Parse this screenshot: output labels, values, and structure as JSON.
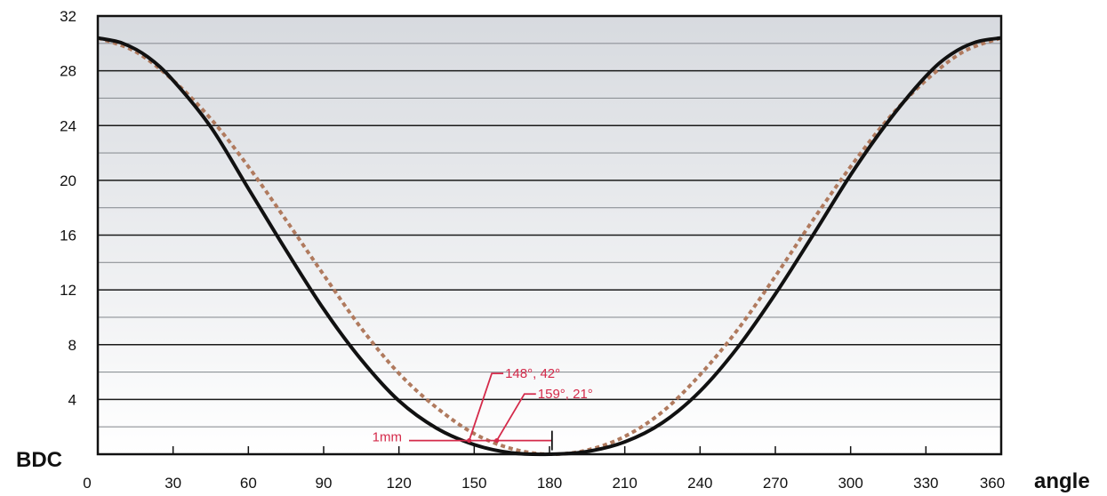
{
  "chart_data": {
    "type": "line",
    "xlabel": "angle",
    "ylabel": "BDC",
    "xlim": [
      0,
      360
    ],
    "ylim": [
      0,
      32
    ],
    "x_ticks": [
      "0",
      "30",
      "60",
      "90",
      "120",
      "150",
      "180",
      "210",
      "240",
      "270",
      "300",
      "330",
      "360"
    ],
    "y_ticks": [
      "4",
      "8",
      "12",
      "16",
      "20",
      "24",
      "28",
      "32"
    ],
    "grid": "horizontal, every 2 units",
    "colors": {
      "solid_line": "#111111",
      "dotted_line": "#b07a5e",
      "annotation": "#d42a4a",
      "background_top": "#d7dadf",
      "background_bottom": "#ffffff"
    },
    "series": [
      {
        "style": "solid",
        "x": [
          0,
          10,
          20,
          30,
          45,
          60,
          75,
          90,
          105,
          120,
          135,
          150,
          165,
          180,
          195,
          210,
          225,
          240,
          255,
          270,
          285,
          300,
          315,
          330,
          340,
          350,
          360
        ],
        "y": [
          30.4,
          30.0,
          29.0,
          27.3,
          23.9,
          19.4,
          14.9,
          10.6,
          6.9,
          3.9,
          1.9,
          0.7,
          0.1,
          0.0,
          0.2,
          0.9,
          2.3,
          4.6,
          7.8,
          11.7,
          16.0,
          20.4,
          24.3,
          27.6,
          29.2,
          30.1,
          30.4
        ]
      },
      {
        "style": "dotted",
        "x": [
          0,
          15,
          30,
          45,
          60,
          75,
          90,
          105,
          120,
          135,
          150,
          165,
          180,
          195,
          210,
          225,
          240,
          255,
          270,
          285,
          300,
          315,
          330,
          345,
          360
        ],
        "y": [
          30.4,
          29.4,
          27.3,
          24.5,
          21.0,
          17.1,
          13.1,
          9.2,
          5.9,
          3.4,
          1.5,
          0.4,
          0.0,
          0.3,
          1.3,
          3.1,
          5.8,
          9.1,
          13.0,
          17.1,
          21.0,
          24.5,
          27.3,
          29.4,
          30.4
        ]
      }
    ],
    "annotations": {
      "reference_label": "1mm",
      "reference_y": 1,
      "reference_x_end": 181,
      "points": [
        {
          "label": "148°, 42°",
          "x": 148,
          "y": 1,
          "label_x": 157,
          "label_y": 5.9
        },
        {
          "label": "159°, 21°",
          "x": 159,
          "y": 1,
          "label_x": 170,
          "label_y": 4.4
        }
      ]
    }
  }
}
